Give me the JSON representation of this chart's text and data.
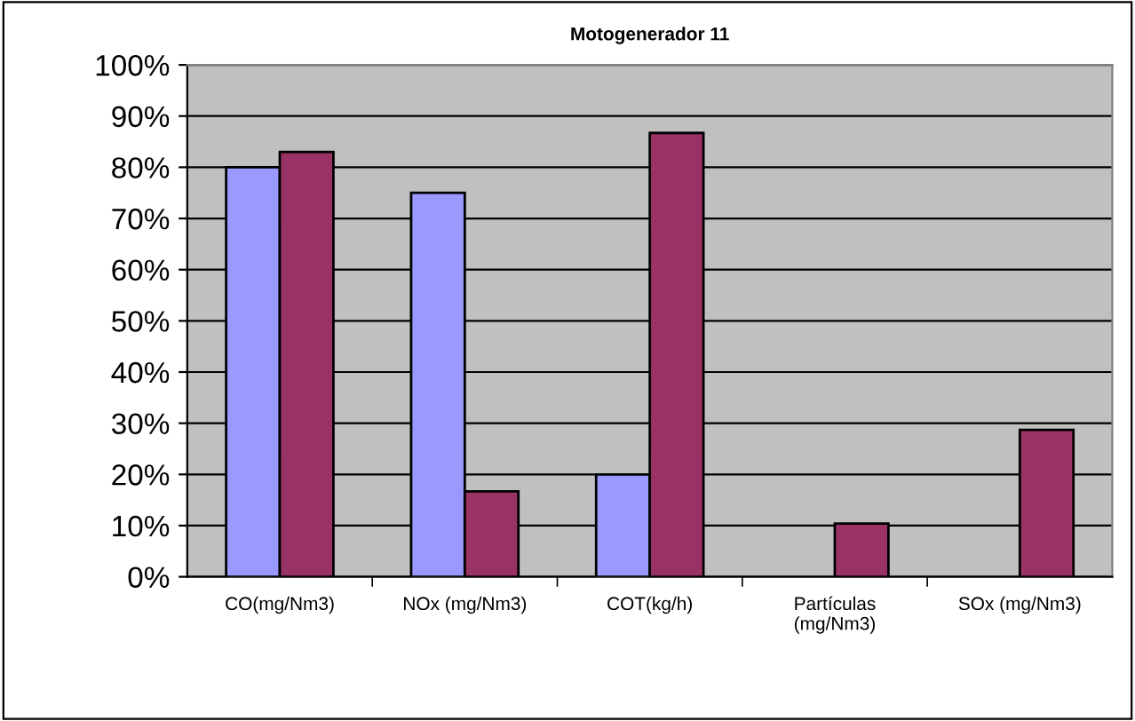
{
  "chart_data": {
    "type": "bar",
    "title": "Motogenerador 11",
    "categories": [
      "CO(mg/Nm3)",
      "NOx (mg/Nm3)",
      "COT(kg/h)",
      "Partículas\n(mg/Nm3)",
      "SOx (mg/Nm3)"
    ],
    "series": [
      {
        "color": "#9999ff",
        "values": [
          80,
          75,
          20,
          null,
          null
        ]
      },
      {
        "color": "#993366",
        "values": [
          83,
          16.7,
          86.7,
          10.4,
          28.7
        ]
      }
    ],
    "ylim": [
      0,
      100
    ],
    "yticks": [
      {
        "value": 0,
        "label": "0%"
      },
      {
        "value": 10,
        "label": "10%"
      },
      {
        "value": 20,
        "label": "20%"
      },
      {
        "value": 30,
        "label": "30%"
      },
      {
        "value": 40,
        "label": "40%"
      },
      {
        "value": 50,
        "label": "50%"
      },
      {
        "value": 60,
        "label": "60%"
      },
      {
        "value": 70,
        "label": "70%"
      },
      {
        "value": 80,
        "label": "80%"
      },
      {
        "value": 90,
        "label": "90%"
      },
      {
        "value": 100,
        "label": "100%"
      }
    ],
    "grid": "y"
  }
}
